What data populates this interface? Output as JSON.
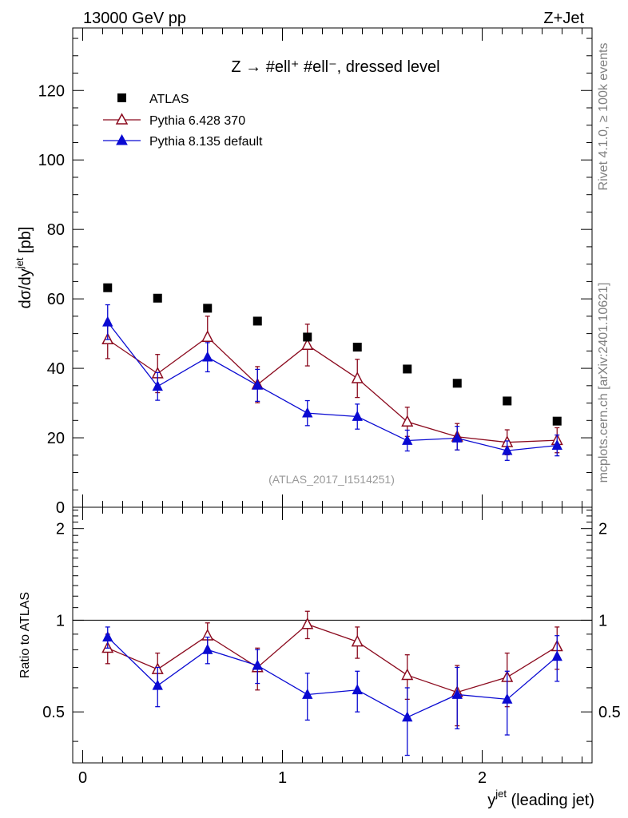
{
  "header": {
    "left": "13000 GeV pp",
    "right": "Z+Jet"
  },
  "side_labels": {
    "rivet": "Rivet 4.1.0, ≥ 100k events",
    "mcplots": "mcplots.cern.ch [arXiv:2401.10621]"
  },
  "chart_data": [
    {
      "type": "scatter",
      "panel": "main",
      "title": "Z → #ell⁺ #ell⁻, dressed level",
      "analysis_label": "(ATLAS_2017_I1514251)",
      "ylabel": "dσ/dy",
      "ylabel_sup": "jet",
      "ylabel_unit": " [pb]",
      "xlim": [
        -0.05,
        2.55
      ],
      "ylim": [
        0,
        138
      ],
      "yticks": [
        0,
        20,
        40,
        60,
        80,
        100,
        120
      ],
      "ytick_labels": [
        "0",
        "20",
        "40",
        "60",
        "80",
        "100",
        "120"
      ],
      "legend_position": "top-left",
      "x": [
        0.125,
        0.375,
        0.625,
        0.875,
        1.125,
        1.375,
        1.625,
        1.875,
        2.125,
        2.375
      ],
      "series": [
        {
          "name": "ATLAS",
          "color": "#000000",
          "marker": "square",
          "values": [
            63.2,
            60.2,
            57.3,
            53.6,
            49.0,
            46.1,
            39.8,
            35.7,
            30.6,
            24.8
          ],
          "errors": [
            0,
            0,
            0,
            0,
            0,
            0,
            0,
            0,
            0,
            0
          ]
        },
        {
          "name": "Pythia 6.428 370",
          "color": "#8b0a1e",
          "marker": "open-triangle",
          "values": [
            48.3,
            38.5,
            49.0,
            35.3,
            46.7,
            37.1,
            24.6,
            20.3,
            18.7,
            19.3
          ],
          "errors": [
            5.5,
            5.5,
            6.0,
            5.2,
            6.0,
            5.5,
            4.2,
            3.8,
            3.6,
            3.6
          ]
        },
        {
          "name": "Pythia 8.135 default",
          "color": "#0a0ad2",
          "marker": "filled-triangle",
          "values": [
            53.3,
            34.8,
            43.2,
            35.1,
            27.1,
            26.1,
            19.2,
            19.9,
            16.3,
            17.8
          ],
          "errors": [
            5.0,
            4.0,
            4.2,
            4.6,
            3.6,
            3.6,
            3.0,
            3.4,
            2.8,
            3.0
          ]
        }
      ]
    },
    {
      "type": "scatter",
      "panel": "ratio",
      "ylabel": "Ratio to ATLAS",
      "xlabel": "y",
      "xlabel_sup": "jet",
      "xlabel_suffix": " (leading jet)",
      "xlim": [
        -0.05,
        2.55
      ],
      "ylim": [
        0.34,
        2.35
      ],
      "xticks": [
        0,
        1,
        2
      ],
      "xtick_labels": [
        "0",
        "1",
        "2"
      ],
      "yticks": [
        0.5,
        1,
        2
      ],
      "ytick_labels": [
        "0.5",
        "1",
        "2"
      ],
      "reference_line": 1,
      "x": [
        0.125,
        0.375,
        0.625,
        0.875,
        1.125,
        1.375,
        1.625,
        1.875,
        2.125,
        2.375
      ],
      "series": [
        {
          "name": "Pythia 6.428 370",
          "color": "#8b0a1e",
          "marker": "open-triangle",
          "values": [
            0.81,
            0.69,
            0.89,
            0.7,
            0.97,
            0.85,
            0.66,
            0.58,
            0.65,
            0.82
          ],
          "errors": [
            0.09,
            0.09,
            0.09,
            0.11,
            0.1,
            0.1,
            0.11,
            0.13,
            0.13,
            0.13
          ]
        },
        {
          "name": "Pythia 8.135 default",
          "color": "#0a0ad2",
          "marker": "filled-triangle",
          "values": [
            0.88,
            0.61,
            0.8,
            0.71,
            0.57,
            0.59,
            0.48,
            0.57,
            0.55,
            0.76
          ],
          "errors": [
            0.07,
            0.09,
            0.08,
            0.09,
            0.1,
            0.09,
            0.12,
            0.13,
            0.13,
            0.13
          ]
        }
      ]
    }
  ]
}
